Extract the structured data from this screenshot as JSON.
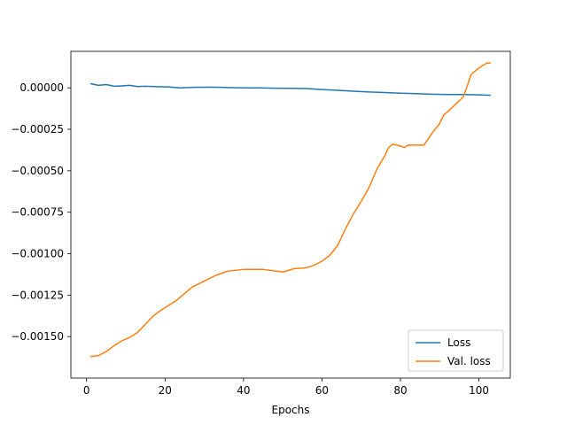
{
  "chart_data": {
    "type": "line",
    "title": "",
    "xlabel": "Epochs",
    "ylabel": "",
    "xlim": [
      -4,
      108
    ],
    "ylim": [
      -0.00175,
      0.00022
    ],
    "xticks": [
      0,
      20,
      40,
      60,
      80,
      100
    ],
    "xtick_labels": [
      "0",
      "20",
      "40",
      "60",
      "80",
      "100"
    ],
    "yticks": [
      0.0,
      -0.00025,
      -0.0005,
      -0.00075,
      -0.001,
      -0.00125,
      -0.0015
    ],
    "ytick_labels": [
      "0.00000",
      "−0.00025",
      "−0.00050",
      "−0.00075",
      "−0.00100",
      "−0.00125",
      "−0.00150"
    ],
    "grid": false,
    "legend_position": "lower-right",
    "series": [
      {
        "name": "Loss",
        "color": "#1f77b4",
        "points": [
          [
            1,
            2.5e-05
          ],
          [
            3,
            1.5e-05
          ],
          [
            5,
            2e-05
          ],
          [
            7,
            1e-05
          ],
          [
            9,
            1.2e-05
          ],
          [
            11,
            1.5e-05
          ],
          [
            13,
            8e-06
          ],
          [
            15,
            1e-05
          ],
          [
            18,
            7e-06
          ],
          [
            21,
            5e-06
          ],
          [
            24,
            0.0
          ],
          [
            27,
            3e-06
          ],
          [
            30,
            4e-06
          ],
          [
            33,
            4e-06
          ],
          [
            36,
            2e-06
          ],
          [
            40,
            0.0
          ],
          [
            44,
            0.0
          ],
          [
            48,
            -2e-06
          ],
          [
            52,
            -3e-06
          ],
          [
            56,
            -4e-06
          ],
          [
            60,
            -1e-05
          ],
          [
            64,
            -1.5e-05
          ],
          [
            68,
            -2e-05
          ],
          [
            72,
            -2.5e-05
          ],
          [
            76,
            -2.8e-05
          ],
          [
            80,
            -3.2e-05
          ],
          [
            84,
            -3.5e-05
          ],
          [
            88,
            -3.8e-05
          ],
          [
            92,
            -4e-05
          ],
          [
            96,
            -4e-05
          ],
          [
            100,
            -4.2e-05
          ],
          [
            103,
            -4.5e-05
          ]
        ]
      },
      {
        "name": "Val. loss",
        "color": "#ff7f0e",
        "points": [
          [
            1,
            -0.00162
          ],
          [
            3,
            -0.001615
          ],
          [
            5,
            -0.00159
          ],
          [
            7,
            -0.001555
          ],
          [
            9,
            -0.001525
          ],
          [
            11,
            -0.001505
          ],
          [
            13,
            -0.001475
          ],
          [
            15,
            -0.001425
          ],
          [
            17,
            -0.001375
          ],
          [
            19,
            -0.00134
          ],
          [
            21,
            -0.00131
          ],
          [
            23,
            -0.00128
          ],
          [
            25,
            -0.00124
          ],
          [
            27,
            -0.0012
          ],
          [
            30,
            -0.001165
          ],
          [
            33,
            -0.00113
          ],
          [
            36,
            -0.001105
          ],
          [
            40,
            -0.001095
          ],
          [
            45,
            -0.001095
          ],
          [
            50,
            -0.00111
          ],
          [
            53,
            -0.00109
          ],
          [
            56,
            -0.001085
          ],
          [
            58,
            -0.00107
          ],
          [
            60,
            -0.001045
          ],
          [
            62,
            -0.00101
          ],
          [
            64,
            -0.00095
          ],
          [
            66,
            -0.00085
          ],
          [
            68,
            -0.00076
          ],
          [
            70,
            -0.000685
          ],
          [
            72,
            -0.0006
          ],
          [
            74,
            -0.00049
          ],
          [
            76,
            -0.00041
          ],
          [
            77,
            -0.00036
          ],
          [
            78,
            -0.00034
          ],
          [
            80,
            -0.00035
          ],
          [
            81,
            -0.00036
          ],
          [
            82,
            -0.000345
          ],
          [
            84,
            -0.000345
          ],
          [
            86,
            -0.000345
          ],
          [
            88,
            -0.000275
          ],
          [
            90,
            -0.000215
          ],
          [
            91,
            -0.000165
          ],
          [
            92,
            -0.000145
          ],
          [
            94,
            -0.0001
          ],
          [
            96,
            -5.5e-05
          ],
          [
            97,
            1e-05
          ],
          [
            98,
            8e-05
          ],
          [
            100,
            0.00012
          ],
          [
            102,
            0.00015
          ],
          [
            103,
            0.00015
          ]
        ]
      }
    ]
  }
}
